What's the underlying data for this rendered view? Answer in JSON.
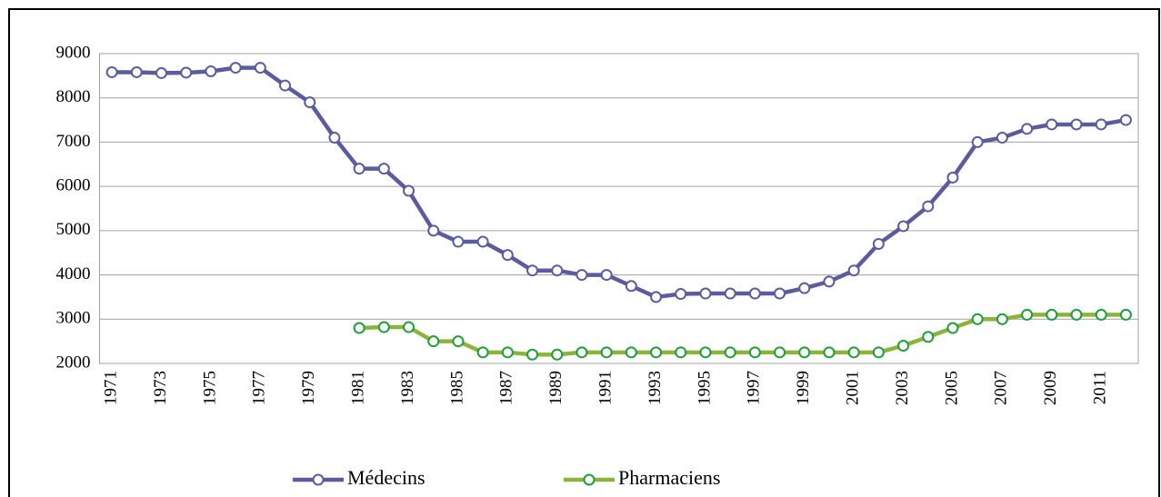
{
  "chart_data": {
    "type": "line",
    "categories": [
      "1971",
      null,
      "1973",
      null,
      "1975",
      null,
      "1977",
      null,
      "1979",
      null,
      "1981",
      null,
      "1983",
      null,
      "1985",
      null,
      "1987",
      null,
      "1989",
      null,
      "1991",
      null,
      "1993",
      null,
      "1995",
      null,
      "1997",
      null,
      "1999",
      null,
      "2001",
      null,
      "2003",
      null,
      "2005",
      null,
      "2007",
      null,
      "2009",
      null,
      "2011",
      null
    ],
    "series": [
      {
        "name": "Médecins",
        "color": "#5b5b9f",
        "marker_edge": "#5b5b9f",
        "values": [
          8580,
          8580,
          8560,
          8570,
          8600,
          8680,
          8680,
          8280,
          7900,
          7100,
          6400,
          6400,
          5900,
          5000,
          4750,
          4750,
          4450,
          4100,
          4100,
          4000,
          4000,
          3750,
          3500,
          3570,
          3580,
          3580,
          3580,
          3580,
          3700,
          3850,
          4100,
          4700,
          5100,
          5550,
          6200,
          7000,
          7100,
          7300,
          7400,
          7400,
          7400,
          7500
        ]
      },
      {
        "name": "Pharmaciens",
        "color": "#8db33a",
        "marker_edge": "#1f9e3c",
        "values": [
          null,
          null,
          null,
          null,
          null,
          null,
          null,
          null,
          null,
          null,
          2800,
          2820,
          2820,
          2500,
          2500,
          2250,
          2250,
          2200,
          2200,
          2250,
          2250,
          2250,
          2250,
          2250,
          2250,
          2250,
          2250,
          2250,
          2250,
          2250,
          2250,
          2250,
          2400,
          2600,
          2800,
          3000,
          3000,
          3100,
          3100,
          3100,
          3100,
          3100
        ]
      }
    ],
    "ylim": [
      2000,
      9000
    ],
    "yticks": [
      2000,
      3000,
      4000,
      5000,
      6000,
      7000,
      8000,
      9000
    ],
    "grid": true,
    "legend": "bottom"
  }
}
